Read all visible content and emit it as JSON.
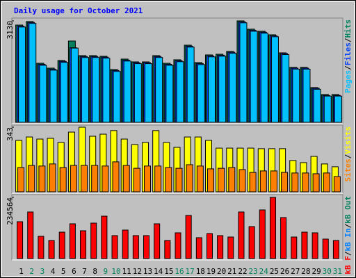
{
  "title": "Daily usage for October 2021",
  "legend_separator": "/",
  "categories": [
    "1",
    "2",
    "3",
    "4",
    "5",
    "6",
    "7",
    "8",
    "9",
    "10",
    "11",
    "12",
    "13",
    "14",
    "15",
    "16",
    "17",
    "18",
    "19",
    "20",
    "21",
    "22",
    "23",
    "24",
    "25",
    "26",
    "27",
    "28",
    "29",
    "30",
    "31"
  ],
  "category_colors": [
    "#000000",
    "#00805c",
    "#00805c",
    "#000000",
    "#000000",
    "#000000",
    "#000000",
    "#000000",
    "#00805c",
    "#00805c",
    "#000000",
    "#000000",
    "#000000",
    "#000000",
    "#000000",
    "#00805c",
    "#00805c",
    "#000000",
    "#000000",
    "#000000",
    "#000000",
    "#000000",
    "#00805c",
    "#00805c",
    "#000000",
    "#000000",
    "#000000",
    "#000000",
    "#000000",
    "#00805c",
    "#00805c"
  ],
  "chart_data": [
    {
      "type": "bar",
      "ylim": [
        0,
        3130
      ],
      "yticks": [
        3130
      ],
      "series": [
        {
          "name": "Pages",
          "color": "#00c0ff",
          "values": [
            2940,
            3050,
            1760,
            1610,
            1850,
            2290,
            2000,
            2000,
            1980,
            1570,
            1890,
            1810,
            1810,
            2000,
            1760,
            1870,
            2320,
            1780,
            2020,
            2040,
            2130,
            3070,
            2810,
            2750,
            2640,
            2090,
            1640,
            1640,
            1020,
            810,
            810
          ]
        },
        {
          "name": "Files",
          "color": "#0040ff",
          "values": [
            2970,
            3080,
            1790,
            1640,
            1880,
            2300,
            2030,
            2030,
            2010,
            1600,
            1920,
            1840,
            1840,
            2030,
            1790,
            1900,
            2350,
            1810,
            2050,
            2070,
            2160,
            3100,
            2840,
            2780,
            2670,
            2120,
            1670,
            1670,
            1050,
            830,
            830
          ]
        },
        {
          "name": "Hits",
          "color": "#00805c",
          "values": [
            3001,
            3109,
            1822,
            1672,
            1908,
            2508,
            2058,
            2058,
            2037,
            1629,
            1951,
            1865,
            1865,
            2058,
            1822,
            1930,
            2380,
            1844,
            2080,
            2101,
            2187,
            3130,
            2873,
            2809,
            2701,
            2144,
            1694,
            1694,
            1072,
            858,
            858
          ]
        }
      ]
    },
    {
      "type": "bar",
      "ylim": [
        0,
        343
      ],
      "yticks": [
        343
      ],
      "series": [
        {
          "name": "Sites",
          "color": "#ff8000",
          "values": [
            129,
            140,
            137,
            148,
            129,
            140,
            140,
            140,
            137,
            159,
            140,
            125,
            137,
            137,
            129,
            125,
            144,
            137,
            122,
            125,
            129,
            118,
            103,
            111,
            111,
            103,
            100,
            100,
            96,
            100,
            81
          ]
        },
        {
          "name": "Visits",
          "color": "#ffff00",
          "values": [
            273,
            291,
            280,
            284,
            262,
            317,
            343,
            295,
            306,
            325,
            280,
            251,
            262,
            325,
            262,
            236,
            291,
            291,
            273,
            232,
            232,
            232,
            232,
            229,
            229,
            229,
            166,
            155,
            188,
            148,
            133
          ]
        }
      ]
    },
    {
      "type": "bar",
      "ylim": [
        0,
        234564
      ],
      "yticks": [
        234564
      ],
      "series": [
        {
          "name": "kB F",
          "color": "#ff0000",
          "values": [
            141271,
            178589,
            85296,
            69303,
            101289,
            133275,
            106620,
            135940,
            162596,
            87962,
            109286,
            87962,
            87962,
            133275,
            69303,
            98624,
            165261,
            79965,
            95958,
            87962,
            82631,
            178589,
            122613,
            186585,
            234564,
            157264,
            82631,
            101289,
            98624,
            74634,
            69303
          ]
        }
      ],
      "legend_extra": [
        {
          "name": "kB In",
          "color": "#0080ff"
        },
        {
          "name": "kB Out",
          "color": "#00805c"
        }
      ]
    }
  ]
}
